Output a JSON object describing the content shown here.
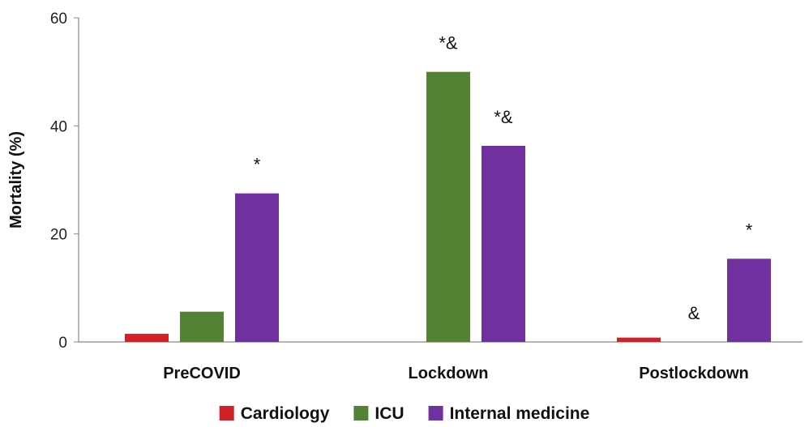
{
  "chart_data": {
    "type": "bar",
    "categories": [
      "PreCOVID",
      "Lockdown",
      "Postlockdown"
    ],
    "series": [
      {
        "name": "Cardiology",
        "values": [
          1.5,
          0,
          0.8
        ],
        "color": "#D12128"
      },
      {
        "name": "ICU",
        "values": [
          5.6,
          50,
          0
        ],
        "color": "#548235"
      },
      {
        "name": "Internal medicine",
        "values": [
          27.5,
          36.3,
          15.4
        ],
        "color": "#7030A0"
      }
    ],
    "annotations": [
      {
        "category": "PreCOVID",
        "series": "Internal medicine",
        "text": "*"
      },
      {
        "category": "Lockdown",
        "series": "ICU",
        "text": "*&"
      },
      {
        "category": "Lockdown",
        "series": "Internal medicine",
        "text": "*&"
      },
      {
        "category": "Postlockdown",
        "series": "ICU",
        "text": "&"
      },
      {
        "category": "Postlockdown",
        "series": "Internal medicine",
        "text": "*"
      }
    ],
    "ylabel": "Mortality (%)",
    "xlabel": "",
    "ylim": [
      0,
      60
    ],
    "yticks": [
      0,
      20,
      40,
      60
    ],
    "grid": false,
    "legend_position": "bottom"
  }
}
